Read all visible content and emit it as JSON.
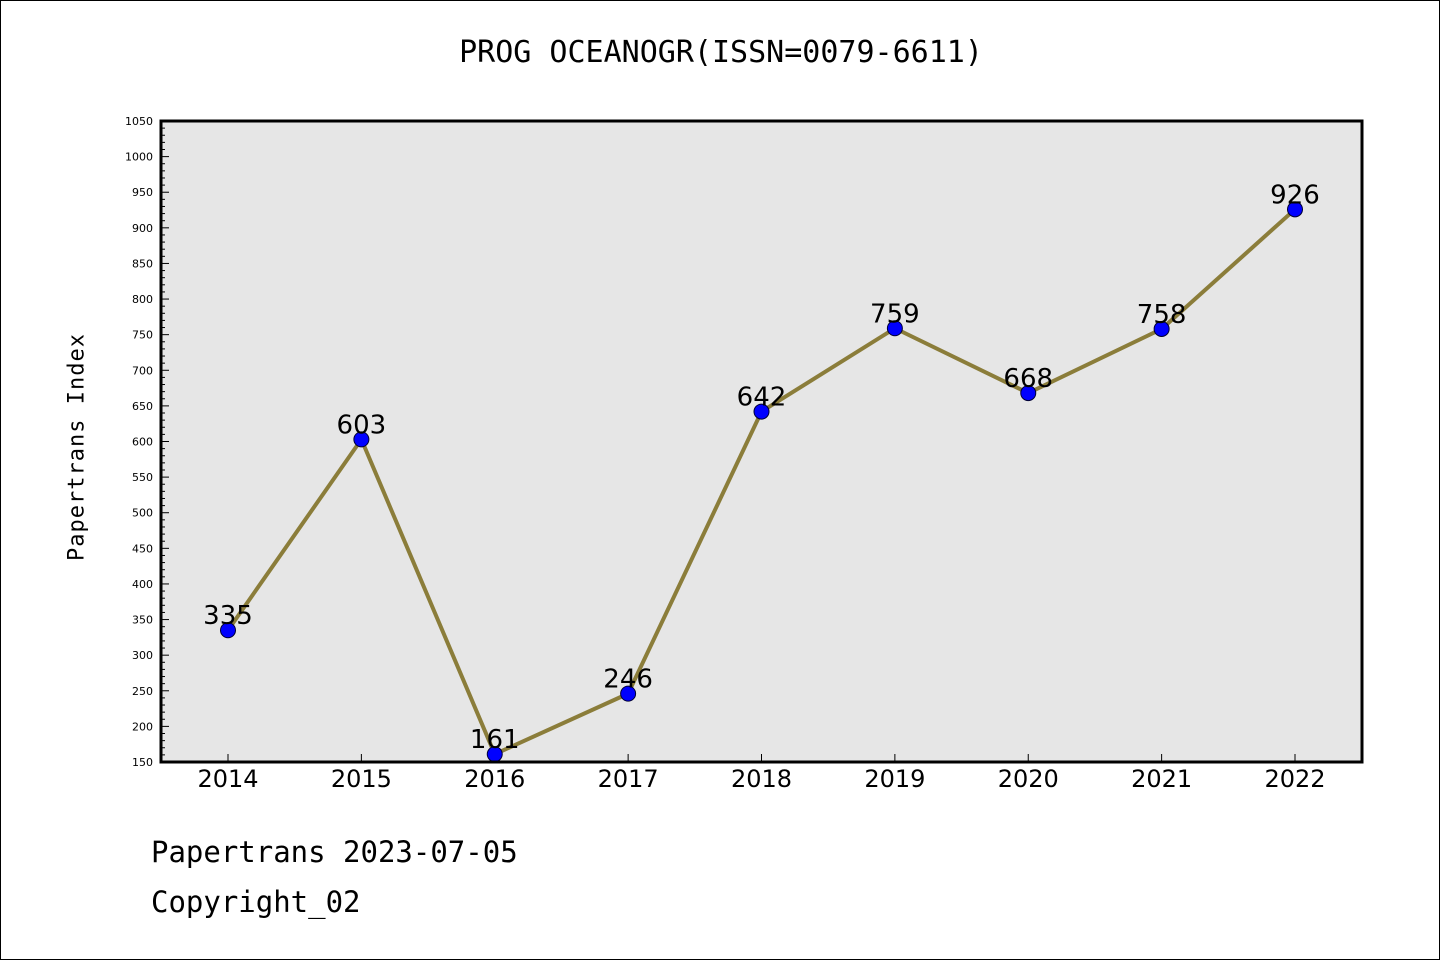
{
  "chart_data": {
    "type": "line",
    "title": "PROG OCEANOGR(ISSN=0079-6611)",
    "xlabel": "",
    "ylabel": "Papertrans Index",
    "categories": [
      "2014",
      "2015",
      "2016",
      "2017",
      "2018",
      "2019",
      "2020",
      "2021",
      "2022"
    ],
    "series": [
      {
        "values": [
          335,
          603,
          161,
          246,
          642,
          759,
          668,
          758,
          926
        ]
      }
    ],
    "data_labels": [
      "335",
      "603",
      "161",
      "246",
      "642",
      "759",
      "668",
      "758",
      "926"
    ],
    "ylim": [
      150,
      1050
    ],
    "yticks": [
      150,
      200,
      250,
      300,
      350,
      400,
      450,
      500,
      550,
      600,
      650,
      700,
      750,
      800,
      850,
      900,
      950,
      1000,
      1050
    ],
    "grid": false,
    "colors": {
      "line": "#8b7d3a",
      "marker": "#0000ff",
      "plot_background": "#e6e6e6"
    }
  },
  "footer": {
    "date_text": "Papertrans 2023-07-05",
    "copyright_text": "Copyright_02"
  }
}
